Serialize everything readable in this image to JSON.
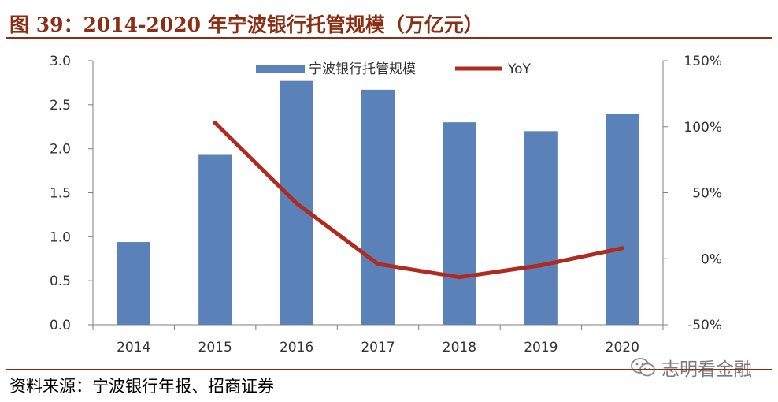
{
  "figure": {
    "title": "图 39：2014-2020 年宁波银行托管规模（万亿元）",
    "source": "资料来源：宁波银行年报、招商证券",
    "watermark": "志明看金融"
  },
  "colors": {
    "title": "#8B2E14",
    "bar": "#5B82B8",
    "line": "#B02A1E",
    "axis": "#7f7f7f",
    "text": "#333333"
  },
  "chart_data": {
    "type": "bar",
    "title": "",
    "categories": [
      "2014",
      "2015",
      "2016",
      "2017",
      "2018",
      "2019",
      "2020"
    ],
    "series": [
      {
        "name": "宁波银行托管规模",
        "type": "bar",
        "axis": "left",
        "values": [
          0.94,
          1.93,
          2.77,
          2.67,
          2.3,
          2.2,
          2.4
        ]
      },
      {
        "name": "YoY",
        "type": "line",
        "axis": "right",
        "values": [
          null,
          103,
          42,
          -4,
          -14,
          -5,
          8
        ]
      }
    ],
    "y_left": {
      "ylim": [
        0,
        3.0
      ],
      "ticks": [
        "0.0",
        "0.5",
        "1.0",
        "1.5",
        "2.0",
        "2.5",
        "3.0"
      ],
      "tick_values": [
        0,
        0.5,
        1.0,
        1.5,
        2.0,
        2.5,
        3.0
      ]
    },
    "y_right": {
      "ylim": [
        -50,
        150
      ],
      "ticks": [
        "-50%",
        "0%",
        "50%",
        "100%",
        "150%"
      ],
      "tick_values": [
        -50,
        0,
        50,
        100,
        150
      ]
    },
    "legend": {
      "position": "top-center",
      "entries": [
        "宁波银行托管规模",
        "YoY"
      ]
    },
    "grid": false
  }
}
